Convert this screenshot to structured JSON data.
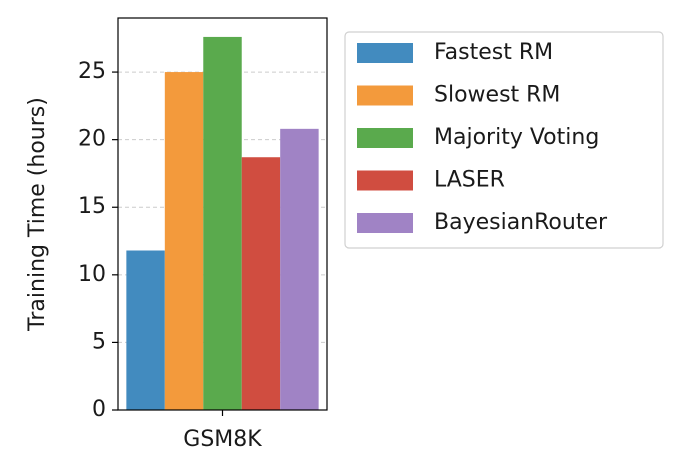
{
  "chart_data": {
    "type": "bar",
    "y_label": "Training Time (hours)",
    "categories": [
      "GSM8K"
    ],
    "series": [
      {
        "name": "Fastest RM",
        "color": "#428bbf",
        "values": [
          11.8
        ]
      },
      {
        "name": "Slowest RM",
        "color": "#f39a3c",
        "values": [
          25.0
        ]
      },
      {
        "name": "Majority Voting",
        "color": "#5aaa4d",
        "values": [
          27.6
        ]
      },
      {
        "name": "LASER",
        "color": "#d04d40",
        "values": [
          18.7
        ]
      },
      {
        "name": "BayesianRouter",
        "color": "#a083c5",
        "values": [
          20.8
        ]
      }
    ],
    "ylim": [
      0,
      29
    ],
    "yticks": [
      0,
      5,
      10,
      15,
      20,
      25
    ],
    "grid": true,
    "legend": "outside-right"
  }
}
